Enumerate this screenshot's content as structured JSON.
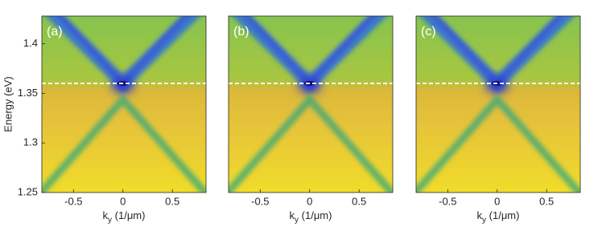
{
  "chart_data": [
    {
      "type": "image",
      "label": "(a)",
      "xlim": [
        -0.82,
        0.84
      ],
      "ylim": [
        1.25,
        1.428
      ],
      "xticks": [
        -0.5,
        0,
        0.5
      ],
      "yticks": [
        1.25,
        1.3,
        1.35,
        1.4
      ],
      "xlabel": {
        "base": "k",
        "sub": "y",
        "unit": "(1/μm)"
      },
      "ylabel": "Energy (eV)",
      "hline": 1.36,
      "hline_color": "#ffffff"
    },
    {
      "type": "image",
      "label": "(b)",
      "xlim": [
        -0.82,
        0.84
      ],
      "ylim": [
        1.25,
        1.428
      ],
      "xticks": [
        -0.5,
        0,
        0.5
      ],
      "xlabel": {
        "base": "k",
        "sub": "y",
        "unit": "(1/μm)"
      },
      "hline": 1.36,
      "hline_color": "#ffffff"
    },
    {
      "type": "image",
      "label": "(c)",
      "xlim": [
        -0.82,
        0.84
      ],
      "ylim": [
        1.25,
        1.428
      ],
      "xticks": [
        -0.5,
        0,
        0.5
      ],
      "xlabel": {
        "base": "k",
        "sub": "y",
        "unit": "(1/μm)"
      },
      "hline": 1.36,
      "hline_color": "#ffffff"
    }
  ]
}
